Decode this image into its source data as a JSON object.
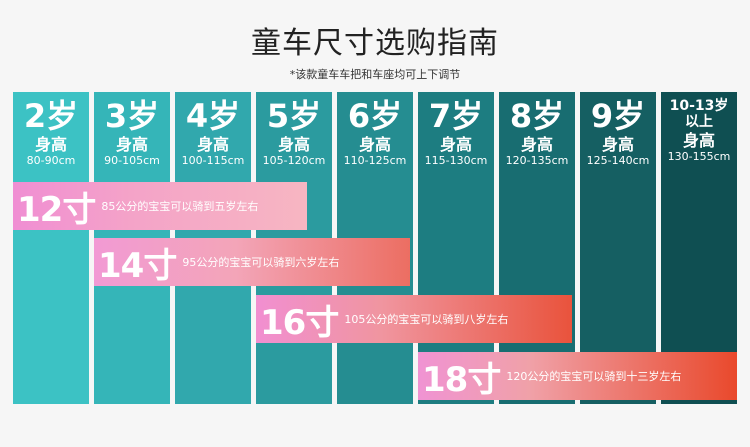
{
  "title": "童车尺寸选购指南",
  "note": "*该款童车车把和车座均可上下调节",
  "height_label": "身高",
  "columns": [
    {
      "age": "2岁",
      "range": "80-90cm",
      "color": "#3cc2c4"
    },
    {
      "age": "3岁",
      "range": "90-105cm",
      "color": "#35b5b8"
    },
    {
      "age": "4岁",
      "range": "100-115cm",
      "color": "#31a8ad"
    },
    {
      "age": "5岁",
      "range": "105-120cm",
      "color": "#2b9b9f"
    },
    {
      "age": "6岁",
      "range": "110-125cm",
      "color": "#258d91"
    },
    {
      "age": "7岁",
      "range": "115-130cm",
      "color": "#1d7d81"
    },
    {
      "age": "8岁",
      "range": "120-135cm",
      "color": "#186d71"
    },
    {
      "age": "9岁",
      "range": "125-140cm",
      "color": "#155f62"
    },
    {
      "age_line1": "10-13岁",
      "age_line2": "以上",
      "range": "130-155cm",
      "color": "#0f4f52"
    }
  ],
  "bands": [
    {
      "size": "12寸",
      "desc": "85公分的宝宝可以骑到五岁左右"
    },
    {
      "size": "14寸",
      "desc": "95公分的宝宝可以骑到六岁左右"
    },
    {
      "size": "16寸",
      "desc": "105公分的宝宝可以骑到八岁左右"
    },
    {
      "size": "18寸",
      "desc": "120公分的宝宝可以骑到十三岁左右"
    }
  ]
}
